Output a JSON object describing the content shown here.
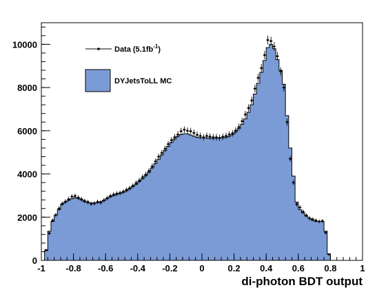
{
  "chart_data": {
    "type": "histogram",
    "title": "",
    "xlabel": "di-photon BDT output",
    "ylabel": "",
    "xlim": [
      -1,
      1
    ],
    "ylim": [
      0,
      11000
    ],
    "x_ticks": [
      -1,
      -0.8,
      -0.6,
      -0.4,
      -0.2,
      0,
      0.2,
      0.4,
      0.6,
      0.8,
      1
    ],
    "x_tick_labels": [
      "-1",
      "-0.8",
      "-0.6",
      "-0.4",
      "-0.2",
      "0",
      "0.2",
      "0.4",
      "0.6",
      "0.8",
      "1"
    ],
    "y_ticks": [
      0,
      2000,
      4000,
      6000,
      8000,
      10000
    ],
    "y_tick_labels": [
      "0",
      "2000",
      "4000",
      "6000",
      "8000",
      "10000"
    ],
    "bin_width": 0.02,
    "legend_position": "top-left",
    "series": [
      {
        "name": "DYJetsToLL MC",
        "kind": "filled-histogram",
        "color": "#7b9bd6",
        "bins_start": -1,
        "values": [
          0,
          450,
          1350,
          1800,
          2100,
          2350,
          2600,
          2700,
          2780,
          2850,
          2900,
          2870,
          2800,
          2720,
          2680,
          2650,
          2660,
          2680,
          2720,
          2780,
          2860,
          2940,
          3000,
          3060,
          3100,
          3150,
          3220,
          3320,
          3420,
          3520,
          3650,
          3780,
          3920,
          4080,
          4280,
          4480,
          4680,
          4880,
          5080,
          5280,
          5460,
          5620,
          5750,
          5820,
          5860,
          5850,
          5800,
          5740,
          5700,
          5680,
          5670,
          5670,
          5660,
          5650,
          5650,
          5660,
          5680,
          5700,
          5750,
          5820,
          5950,
          6100,
          6300,
          6550,
          6850,
          7200,
          7700,
          8200,
          8700,
          9250,
          9850,
          10000,
          9800,
          9300,
          8800,
          8150,
          6700,
          5200,
          3900,
          2700,
          2350,
          2200,
          2050,
          1950,
          1850,
          1800,
          1800,
          1800,
          1350,
          300
        ]
      },
      {
        "name": "Data (5.1fb",
        "name_superscript": "-1",
        "name_suffix": ")",
        "kind": "points-with-errors",
        "color": "#000000",
        "bins_start": -1,
        "values": [
          0,
          480,
          1250,
          1850,
          2100,
          2400,
          2620,
          2720,
          2830,
          2950,
          2980,
          2900,
          2830,
          2750,
          2700,
          2620,
          2640,
          2700,
          2680,
          2780,
          2880,
          2980,
          3050,
          3090,
          3120,
          3180,
          3260,
          3340,
          3450,
          3580,
          3700,
          3850,
          3970,
          4140,
          4350,
          4580,
          4800,
          4970,
          5160,
          5380,
          5560,
          5700,
          5830,
          5980,
          6050,
          6000,
          5980,
          5900,
          5810,
          5760,
          5700,
          5760,
          5730,
          5700,
          5700,
          5670,
          5720,
          5760,
          5830,
          5880,
          6010,
          6170,
          6440,
          6750,
          7050,
          7400,
          7950,
          8450,
          8900,
          9500,
          10200,
          10150,
          9900,
          9450,
          8750,
          8000,
          6400,
          4700,
          3600,
          2600,
          2450,
          2250,
          2080,
          1950,
          1900,
          1850,
          1800,
          1820,
          1280,
          280
        ]
      }
    ]
  }
}
